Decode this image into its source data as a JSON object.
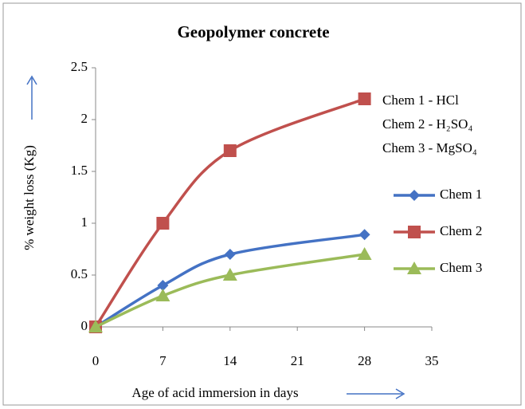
{
  "chart_data": {
    "type": "line",
    "title": "Geopolymer concrete",
    "x_label": "Age of acid immersion in days",
    "y_label": "% weight loss  (Kg)",
    "x": [
      0,
      7,
      14,
      28
    ],
    "series": [
      {
        "name": "Chem 1",
        "color": "#4472c4",
        "marker": "diamond",
        "values": [
          0,
          0.4,
          0.7,
          0.89
        ]
      },
      {
        "name": "Chem 2",
        "color": "#c0504d",
        "marker": "square",
        "values": [
          0,
          1,
          1.7,
          2.2
        ]
      },
      {
        "name": "Chem 3",
        "color": "#9bbb59",
        "marker": "triangle",
        "values": [
          0,
          0.3,
          0.5,
          0.7
        ]
      }
    ],
    "annotations": [
      "Chem 1 - HCl",
      "Chem 2 - H₂SO₄",
      "Chem 3 - MgSO₄"
    ],
    "xlim": [
      0,
      35
    ],
    "xticks": [
      0,
      7,
      14,
      21,
      28,
      35
    ],
    "ylim": [
      0,
      2.5
    ],
    "yticks": [
      0,
      0.5,
      1,
      1.5,
      2,
      2.5
    ],
    "grid": false,
    "legend": "right"
  }
}
